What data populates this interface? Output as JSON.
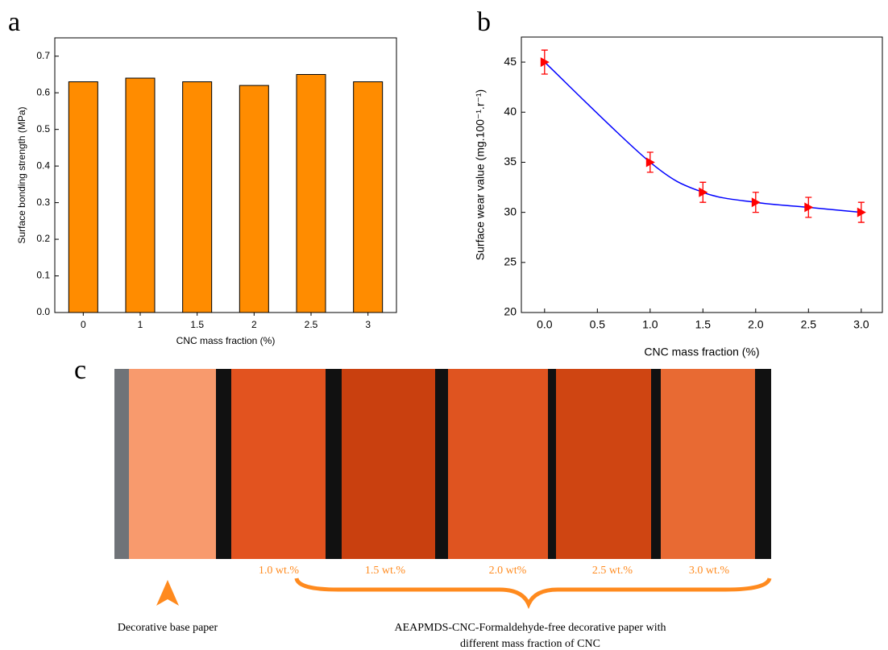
{
  "chart_data": [
    {
      "type": "bar",
      "panel": "a",
      "categories": [
        "0",
        "1",
        "1.5",
        "2",
        "2.5",
        "3"
      ],
      "values": [
        0.63,
        0.64,
        0.63,
        0.62,
        0.65,
        0.63
      ],
      "color": "#ff8c00",
      "ylim": [
        0,
        0.75
      ],
      "yticks": [
        {
          "value": 0,
          "label": "0.0"
        },
        0.1,
        0.2,
        0.3,
        0.4,
        0.5,
        0.6,
        0.7
      ],
      "ylabel": "Surface bonding strength (MPa)",
      "xlabel": "CNC mass fraction (%)"
    },
    {
      "type": "line",
      "panel": "b",
      "x": [
        0,
        1,
        1.5,
        2,
        2.5,
        3
      ],
      "values": [
        45,
        35,
        32,
        31,
        30.5,
        30
      ],
      "errors": [
        1.2,
        1,
        1,
        1,
        1,
        1
      ],
      "color": "#0000ff",
      "marker_color": "#ff0000",
      "xlim": [
        -0.22,
        3.2
      ],
      "xticks": [
        {
          "value": 0,
          "label": "0.0"
        },
        0.5,
        {
          "value": 1,
          "label": "1.0"
        },
        1.5,
        {
          "value": 2,
          "label": "2.0"
        },
        2.5,
        {
          "value": 3,
          "label": "3.0"
        }
      ],
      "ylim": [
        20,
        47.5
      ],
      "yticks": [
        20,
        25,
        30,
        35,
        40,
        45
      ],
      "ylabel": "Surface wear value (mg.100⁻¹.r⁻¹)",
      "xlabel": "CNC mass fraction (%)"
    }
  ],
  "photo": {
    "panel": "c",
    "strip_labels": [
      "1.0 wt.%",
      "1.5 wt.%",
      "2.0 wt%",
      "2.5 wt.%",
      "3.0 wt.%"
    ],
    "base_label": "Decorative base paper",
    "group_label": [
      "AEAPMDS-CNC-Formaldehyde-free decorative paper with",
      "different mass fraction of CNC"
    ]
  }
}
